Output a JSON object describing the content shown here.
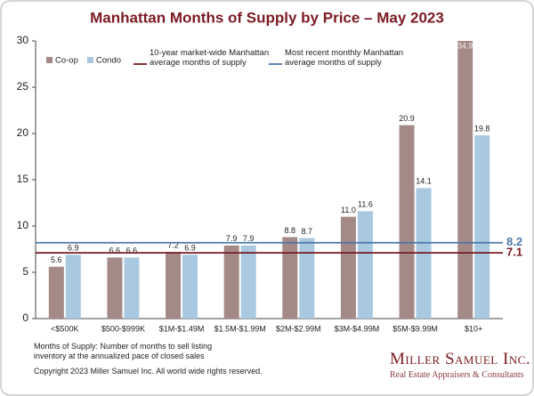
{
  "chart_data": {
    "type": "bar",
    "title": "Manhattan Months of Supply by Price – May 2023",
    "categories": [
      "<$500K",
      "$500-$999K",
      "$1M-$1.49M",
      "$1.5M-$1.99M",
      "$2M-$2.99M",
      "$3M-$4.99M",
      "$5M-$9.99M",
      "$10+"
    ],
    "series": [
      {
        "name": "Co-op",
        "color": "#a48a87",
        "values": [
          5.6,
          6.6,
          7.2,
          7.9,
          8.8,
          11.0,
          20.9,
          34.9
        ],
        "value_labels": [
          "5.6",
          "6.6",
          "7.2",
          "7.9",
          "8.8",
          "11.0",
          "20.9",
          "34.9"
        ]
      },
      {
        "name": "Condo",
        "color": "#a9c9e0",
        "values": [
          6.9,
          6.6,
          6.9,
          7.9,
          8.7,
          11.6,
          14.1,
          19.8
        ],
        "value_labels": [
          "6.9",
          "6.6",
          "6.9",
          "7.9",
          "8.7",
          "11.6",
          "14.1",
          "19.8"
        ]
      }
    ],
    "reference_lines": [
      {
        "name": "10-year market-wide Manhattan average months of supply",
        "value": 7.1,
        "color": "#7b1a22"
      },
      {
        "name": "Most recent monthly Manhattan average months of supply",
        "value": 8.2,
        "color": "#4a78a8"
      }
    ],
    "ylim": [
      0,
      30
    ],
    "yticks": [
      0,
      5,
      10,
      15,
      20,
      25,
      30
    ],
    "grid": false,
    "footnote": "Months of Supply: Number of months to sell listing inventory at the annualized pace of closed sales",
    "copyright": "Copyright 2023 Miller Samuel Inc.  All world wide rights reserved.",
    "logo": {
      "name": "Miller Samuel Inc.",
      "tagline": "Real Estate Appraisers & Consultants"
    }
  }
}
